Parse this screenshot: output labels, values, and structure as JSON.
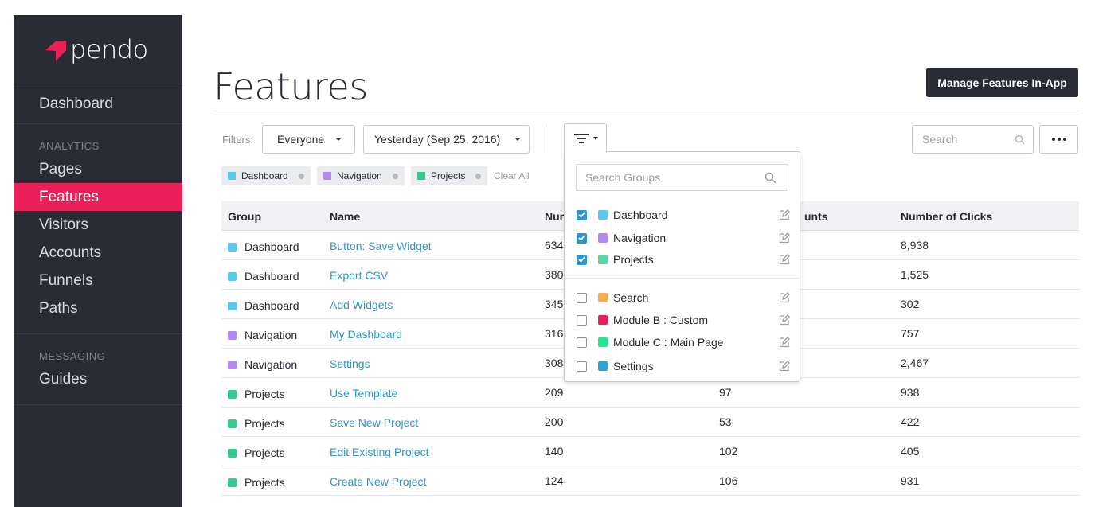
{
  "brand": {
    "name": "pendo",
    "accent": "#ec2059"
  },
  "sidebar": {
    "home": "Dashboard",
    "sections": [
      {
        "label": "ANALYTICS",
        "items": [
          {
            "label": "Pages"
          },
          {
            "label": "Features",
            "active": true
          },
          {
            "label": "Visitors"
          },
          {
            "label": "Accounts"
          },
          {
            "label": "Funnels"
          },
          {
            "label": "Paths"
          }
        ]
      },
      {
        "label": "MESSAGING",
        "items": [
          {
            "label": "Guides"
          }
        ]
      }
    ]
  },
  "header": {
    "title": "Features",
    "manage_button": "Manage Features In-App"
  },
  "filters": {
    "label": "Filters:",
    "segment": "Everyone",
    "date_range": "Yesterday (Sep 25, 2016)",
    "search_placeholder": "Search",
    "chips": [
      {
        "label": "Dashboard",
        "color": "#5bc8f0"
      },
      {
        "label": "Navigation",
        "color": "#b187f0"
      },
      {
        "label": "Projects",
        "color": "#35c98f"
      }
    ],
    "clear_all": "Clear All"
  },
  "table": {
    "columns": [
      "Group",
      "Name",
      "Number of Visitors",
      "Number of Accounts",
      "Number of Clicks"
    ],
    "visible_headers": [
      "Group",
      "Name",
      "Num",
      "unts",
      "Number of Clicks"
    ],
    "rows": [
      {
        "group": "Dashboard",
        "color": "#5bc8f0",
        "name": "Button: Save Widget",
        "visitors": "634",
        "accounts": "",
        "clicks": "8,938"
      },
      {
        "group": "Dashboard",
        "color": "#5bc8f0",
        "name": "Export CSV",
        "visitors": "380",
        "accounts": "",
        "clicks": "1,525"
      },
      {
        "group": "Dashboard",
        "color": "#5bc8f0",
        "name": "Add Widgets",
        "visitors": "345",
        "accounts": "",
        "clicks": "302"
      },
      {
        "group": "Navigation",
        "color": "#b187f0",
        "name": "My Dashboard",
        "visitors": "316",
        "accounts": "",
        "clicks": "757"
      },
      {
        "group": "Navigation",
        "color": "#b187f0",
        "name": "Settings",
        "visitors": "308",
        "accounts": "",
        "clicks": "2,467"
      },
      {
        "group": "Projects",
        "color": "#35c98f",
        "name": "Use Template",
        "visitors": "209",
        "accounts": "97",
        "clicks": "938"
      },
      {
        "group": "Projects",
        "color": "#35c98f",
        "name": "Save New Project",
        "visitors": "200",
        "accounts": "53",
        "clicks": "422"
      },
      {
        "group": "Projects",
        "color": "#35c98f",
        "name": "Edit Existing Project",
        "visitors": "140",
        "accounts": "102",
        "clicks": "405"
      },
      {
        "group": "Projects",
        "color": "#35c98f",
        "name": "Create New Project",
        "visitors": "124",
        "accounts": "106",
        "clicks": "931"
      }
    ]
  },
  "group_dropdown": {
    "search_placeholder": "Search Groups",
    "selected": [
      {
        "label": "Dashboard",
        "color": "#5bc8f0",
        "checked": true
      },
      {
        "label": "Navigation",
        "color": "#b187f0",
        "checked": true
      },
      {
        "label": "Projects",
        "color": "#5fd3a4",
        "checked": true
      }
    ],
    "unselected": [
      {
        "label": "Search",
        "color": "#f5ad53",
        "checked": false
      },
      {
        "label": "Module B : Custom",
        "color": "#ec2059",
        "checked": false
      },
      {
        "label": "Module C : Main Page",
        "color": "#1ee98e",
        "checked": false
      },
      {
        "label": "Settings",
        "color": "#2aa3d8",
        "checked": false
      }
    ]
  },
  "icons": [
    "pendo-logo-icon",
    "caret-down-icon",
    "filter-icon",
    "search-icon",
    "more-icon",
    "remove-chip-icon",
    "checkbox-icon",
    "edit-icon"
  ]
}
